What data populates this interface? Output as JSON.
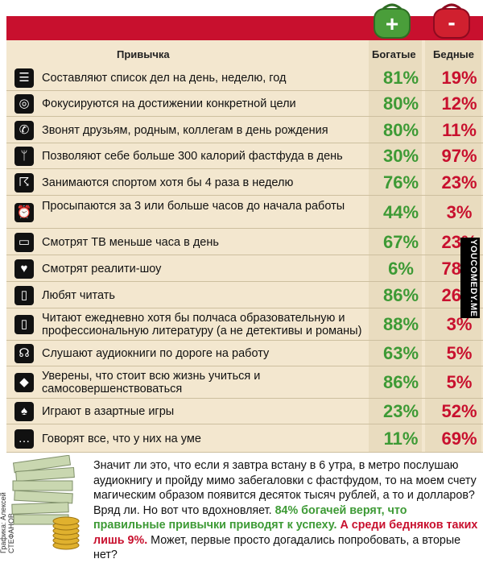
{
  "header": {
    "habit_col": "Привычка",
    "rich_col": "Богатые",
    "poor_col": "Бедные"
  },
  "purses": {
    "rich_sign": "+",
    "poor_sign": "-"
  },
  "colors": {
    "accent_red": "#c8102e",
    "accent_green": "#3d9a35",
    "panel": "#f3e7cf"
  },
  "chart_data": {
    "type": "table",
    "columns": [
      "Привычка",
      "Богатые",
      "Бедные"
    ],
    "rows": [
      {
        "icon": "list-icon",
        "habit": "Составляют список дел на день, неделю, год",
        "rich": "81%",
        "poor": "19%"
      },
      {
        "icon": "target-icon",
        "habit": "Фокусируются на достижении конкретной цели",
        "rich": "80%",
        "poor": "12%"
      },
      {
        "icon": "phone-icon",
        "habit": "Звонят друзьям, родным, коллегам в день рождения",
        "rich": "80%",
        "poor": "11%"
      },
      {
        "icon": "fork-icon",
        "habit": "Позволяют себе больше 300 калорий фастфуда в день",
        "rich": "30%",
        "poor": "97%"
      },
      {
        "icon": "runner-icon",
        "habit": "Занимаются спортом хотя бы 4 раза в неделю",
        "rich": "76%",
        "poor": "23%"
      },
      {
        "icon": "alarm-clock-icon",
        "habit": "Просыпаются за 3 или больше часов до начала работы",
        "rich": "44%",
        "poor": "3%"
      },
      {
        "icon": "tv-icon",
        "habit": "Смотрят ТВ меньше часа в день",
        "rich": "67%",
        "poor": "23%"
      },
      {
        "icon": "tv-heart-icon",
        "habit": "Смотрят реалити-шоу",
        "rich": "6%",
        "poor": "78%"
      },
      {
        "icon": "book-icon",
        "habit": "Любят читать",
        "rich": "86%",
        "poor": "26%"
      },
      {
        "icon": "book-icon",
        "habit": "Читают ежедневно хотя бы полчаса образовательную и профессиональную литературу (а не детективы и романы)",
        "rich": "88%",
        "poor": "3%"
      },
      {
        "icon": "headphones-icon",
        "habit": "Слушают аудиокниги по дороге на работу",
        "rich": "63%",
        "poor": "5%"
      },
      {
        "icon": "graduation-cap-icon",
        "habit": "Уверены, что стоит всю жизнь учиться и самосовершенствоваться",
        "rich": "86%",
        "poor": "5%"
      },
      {
        "icon": "spade-icon",
        "habit": "Играют в азартные игры",
        "rich": "23%",
        "poor": "52%"
      },
      {
        "icon": "speech-bubble-icon",
        "habit": "Говорят все, что у них на уме",
        "rich": "11%",
        "poor": "69%"
      }
    ]
  },
  "footer": {
    "part1": "Значит ли это, что если я завтра встану в 6 утра, в метро послушаю аудиокнигу и пройду мимо забегаловки с фастфудом, то на моем счету магическим образом появится десяток тысяч рублей, а то и долларов? Вряд ли. Но вот что вдохновляет.",
    "green": "84% богачей верят, что правильные привычки приводят к успеху.",
    "red": "А среди бедняков таких лишь 9%.",
    "part2": "Может, первые просто догадались попробовать, а вторые нет?"
  },
  "credit": "Графика: Алексей СТЕФАНОВ.",
  "watermark": "YOUCOMEDY.ME"
}
